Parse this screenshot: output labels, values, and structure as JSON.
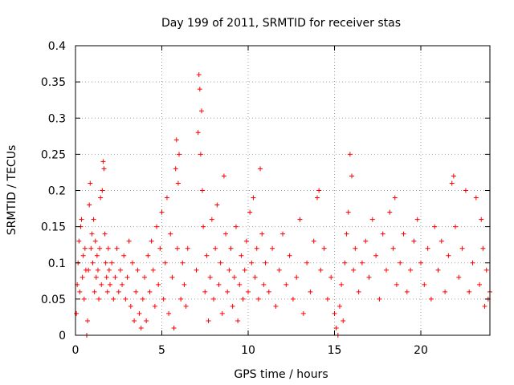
{
  "chart_data": {
    "type": "scatter",
    "title": "Day 199 of 2011, SRMTID for receiver stas",
    "xlabel": "GPS time / hours",
    "ylabel": "SRMTID / TECUs",
    "xlim": [
      0,
      24
    ],
    "ylim": [
      0,
      0.4
    ],
    "x_ticks": [
      0,
      5,
      10,
      15,
      20
    ],
    "x_tick_labels": [
      "0",
      "5",
      "10",
      "15",
      "20"
    ],
    "y_ticks": [
      0,
      0.05,
      0.1,
      0.15,
      0.2,
      0.25,
      0.3,
      0.35,
      0.4
    ],
    "y_tick_labels": [
      "0",
      "0.05",
      "0.1",
      "0.15",
      "0.2",
      "0.25",
      "0.3",
      "0.35",
      "0.4"
    ],
    "grid": true,
    "marker": "+",
    "series": [
      {
        "name": "SRMTID",
        "color": "#ff0000",
        "points": [
          [
            0.05,
            0.03
          ],
          [
            0.1,
            0.07
          ],
          [
            0.15,
            0.1
          ],
          [
            0.2,
            0.13
          ],
          [
            0.25,
            0.06
          ],
          [
            0.3,
            0.15
          ],
          [
            0.35,
            0.16
          ],
          [
            0.4,
            0.08
          ],
          [
            0.45,
            0.11
          ],
          [
            0.5,
            0.05
          ],
          [
            0.55,
            0.12
          ],
          [
            0.6,
            0.09
          ],
          [
            0.65,
            0.0
          ],
          [
            0.7,
            0.02
          ],
          [
            0.75,
            0.09
          ],
          [
            0.8,
            0.18
          ],
          [
            0.85,
            0.21
          ],
          [
            0.9,
            0.12
          ],
          [
            0.95,
            0.14
          ],
          [
            1.0,
            0.1
          ],
          [
            1.05,
            0.16
          ],
          [
            1.1,
            0.06
          ],
          [
            1.15,
            0.13
          ],
          [
            1.2,
            0.08
          ],
          [
            1.25,
            0.11
          ],
          [
            1.3,
            0.09
          ],
          [
            1.35,
            0.05
          ],
          [
            1.4,
            0.12
          ],
          [
            1.45,
            0.19
          ],
          [
            1.5,
            0.07
          ],
          [
            1.55,
            0.2
          ],
          [
            1.6,
            0.24
          ],
          [
            1.65,
            0.23
          ],
          [
            1.7,
            0.14
          ],
          [
            1.75,
            0.1
          ],
          [
            1.8,
            0.08
          ],
          [
            1.85,
            0.06
          ],
          [
            1.9,
            0.12
          ],
          [
            1.95,
            0.09
          ],
          [
            2.0,
            0.07
          ],
          [
            2.1,
            0.1
          ],
          [
            2.2,
            0.05
          ],
          [
            2.3,
            0.08
          ],
          [
            2.4,
            0.12
          ],
          [
            2.5,
            0.06
          ],
          [
            2.6,
            0.09
          ],
          [
            2.7,
            0.07
          ],
          [
            2.8,
            0.11
          ],
          [
            2.9,
            0.05
          ],
          [
            3.0,
            0.08
          ],
          [
            3.1,
            0.13
          ],
          [
            3.2,
            0.04
          ],
          [
            3.3,
            0.1
          ],
          [
            3.4,
            0.02
          ],
          [
            3.5,
            0.06
          ],
          [
            3.6,
            0.09
          ],
          [
            3.7,
            0.03
          ],
          [
            3.8,
            0.01
          ],
          [
            3.9,
            0.05
          ],
          [
            4.0,
            0.08
          ],
          [
            4.1,
            0.02
          ],
          [
            4.2,
            0.11
          ],
          [
            4.3,
            0.06
          ],
          [
            4.4,
            0.13
          ],
          [
            4.5,
            0.09
          ],
          [
            4.6,
            0.04
          ],
          [
            4.7,
            0.15
          ],
          [
            4.8,
            0.07
          ],
          [
            4.9,
            0.12
          ],
          [
            5.0,
            0.17
          ],
          [
            5.1,
            0.05
          ],
          [
            5.2,
            0.1
          ],
          [
            5.3,
            0.19
          ],
          [
            5.4,
            0.03
          ],
          [
            5.5,
            0.14
          ],
          [
            5.6,
            0.08
          ],
          [
            5.7,
            0.01
          ],
          [
            5.8,
            0.23
          ],
          [
            5.85,
            0.27
          ],
          [
            5.9,
            0.12
          ],
          [
            5.95,
            0.21
          ],
          [
            6.0,
            0.25
          ],
          [
            6.1,
            0.05
          ],
          [
            6.2,
            0.1
          ],
          [
            6.3,
            0.07
          ],
          [
            6.4,
            0.04
          ],
          [
            6.5,
            0.12
          ],
          [
            7.0,
            0.09
          ],
          [
            7.1,
            0.28
          ],
          [
            7.15,
            0.36
          ],
          [
            7.2,
            0.34
          ],
          [
            7.25,
            0.25
          ],
          [
            7.3,
            0.31
          ],
          [
            7.35,
            0.2
          ],
          [
            7.4,
            0.15
          ],
          [
            7.5,
            0.06
          ],
          [
            7.6,
            0.11
          ],
          [
            7.7,
            0.02
          ],
          [
            7.8,
            0.08
          ],
          [
            7.9,
            0.16
          ],
          [
            8.0,
            0.05
          ],
          [
            8.1,
            0.12
          ],
          [
            8.2,
            0.18
          ],
          [
            8.3,
            0.07
          ],
          [
            8.4,
            0.1
          ],
          [
            8.5,
            0.03
          ],
          [
            8.6,
            0.22
          ],
          [
            8.7,
            0.14
          ],
          [
            8.8,
            0.06
          ],
          [
            8.9,
            0.09
          ],
          [
            9.0,
            0.12
          ],
          [
            9.1,
            0.04
          ],
          [
            9.2,
            0.08
          ],
          [
            9.3,
            0.15
          ],
          [
            9.4,
            0.02
          ],
          [
            9.5,
            0.07
          ],
          [
            9.6,
            0.11
          ],
          [
            9.7,
            0.05
          ],
          [
            9.8,
            0.09
          ],
          [
            9.9,
            0.13
          ],
          [
            10.0,
            0.06
          ],
          [
            10.1,
            0.17
          ],
          [
            10.2,
            0.1
          ],
          [
            10.3,
            0.19
          ],
          [
            10.4,
            0.08
          ],
          [
            10.5,
            0.12
          ],
          [
            10.6,
            0.05
          ],
          [
            10.7,
            0.23
          ],
          [
            10.8,
            0.14
          ],
          [
            10.9,
            0.07
          ],
          [
            11.0,
            0.1
          ],
          [
            11.2,
            0.06
          ],
          [
            11.4,
            0.12
          ],
          [
            11.6,
            0.04
          ],
          [
            11.8,
            0.09
          ],
          [
            12.0,
            0.14
          ],
          [
            12.2,
            0.07
          ],
          [
            12.4,
            0.11
          ],
          [
            12.6,
            0.05
          ],
          [
            12.8,
            0.08
          ],
          [
            13.0,
            0.16
          ],
          [
            13.2,
            0.03
          ],
          [
            13.4,
            0.1
          ],
          [
            13.6,
            0.06
          ],
          [
            13.8,
            0.13
          ],
          [
            14.0,
            0.19
          ],
          [
            14.1,
            0.2
          ],
          [
            14.2,
            0.09
          ],
          [
            14.4,
            0.12
          ],
          [
            14.6,
            0.05
          ],
          [
            14.8,
            0.08
          ],
          [
            15.0,
            0.03
          ],
          [
            15.1,
            0.01
          ],
          [
            15.2,
            0.0
          ],
          [
            15.3,
            0.04
          ],
          [
            15.4,
            0.07
          ],
          [
            15.5,
            0.02
          ],
          [
            15.6,
            0.1
          ],
          [
            15.7,
            0.14
          ],
          [
            15.8,
            0.17
          ],
          [
            15.9,
            0.25
          ],
          [
            16.0,
            0.22
          ],
          [
            16.1,
            0.09
          ],
          [
            16.2,
            0.12
          ],
          [
            16.4,
            0.06
          ],
          [
            16.6,
            0.1
          ],
          [
            16.8,
            0.13
          ],
          [
            17.0,
            0.08
          ],
          [
            17.2,
            0.16
          ],
          [
            17.4,
            0.11
          ],
          [
            17.6,
            0.05
          ],
          [
            17.8,
            0.14
          ],
          [
            18.0,
            0.09
          ],
          [
            18.2,
            0.17
          ],
          [
            18.4,
            0.12
          ],
          [
            18.5,
            0.19
          ],
          [
            18.6,
            0.07
          ],
          [
            18.8,
            0.1
          ],
          [
            19.0,
            0.14
          ],
          [
            19.2,
            0.06
          ],
          [
            19.4,
            0.09
          ],
          [
            19.6,
            0.13
          ],
          [
            19.8,
            0.16
          ],
          [
            20.0,
            0.1
          ],
          [
            20.2,
            0.07
          ],
          [
            20.4,
            0.12
          ],
          [
            20.6,
            0.05
          ],
          [
            20.8,
            0.15
          ],
          [
            21.0,
            0.09
          ],
          [
            21.2,
            0.13
          ],
          [
            21.4,
            0.06
          ],
          [
            21.6,
            0.11
          ],
          [
            21.8,
            0.21
          ],
          [
            21.9,
            0.22
          ],
          [
            22.0,
            0.15
          ],
          [
            22.2,
            0.08
          ],
          [
            22.4,
            0.12
          ],
          [
            22.6,
            0.2
          ],
          [
            22.8,
            0.06
          ],
          [
            23.0,
            0.1
          ],
          [
            23.2,
            0.19
          ],
          [
            23.4,
            0.07
          ],
          [
            23.5,
            0.16
          ],
          [
            23.6,
            0.12
          ],
          [
            23.7,
            0.04
          ],
          [
            23.8,
            0.09
          ],
          [
            23.9,
            0.05
          ],
          [
            24.0,
            0.06
          ]
        ]
      }
    ]
  }
}
